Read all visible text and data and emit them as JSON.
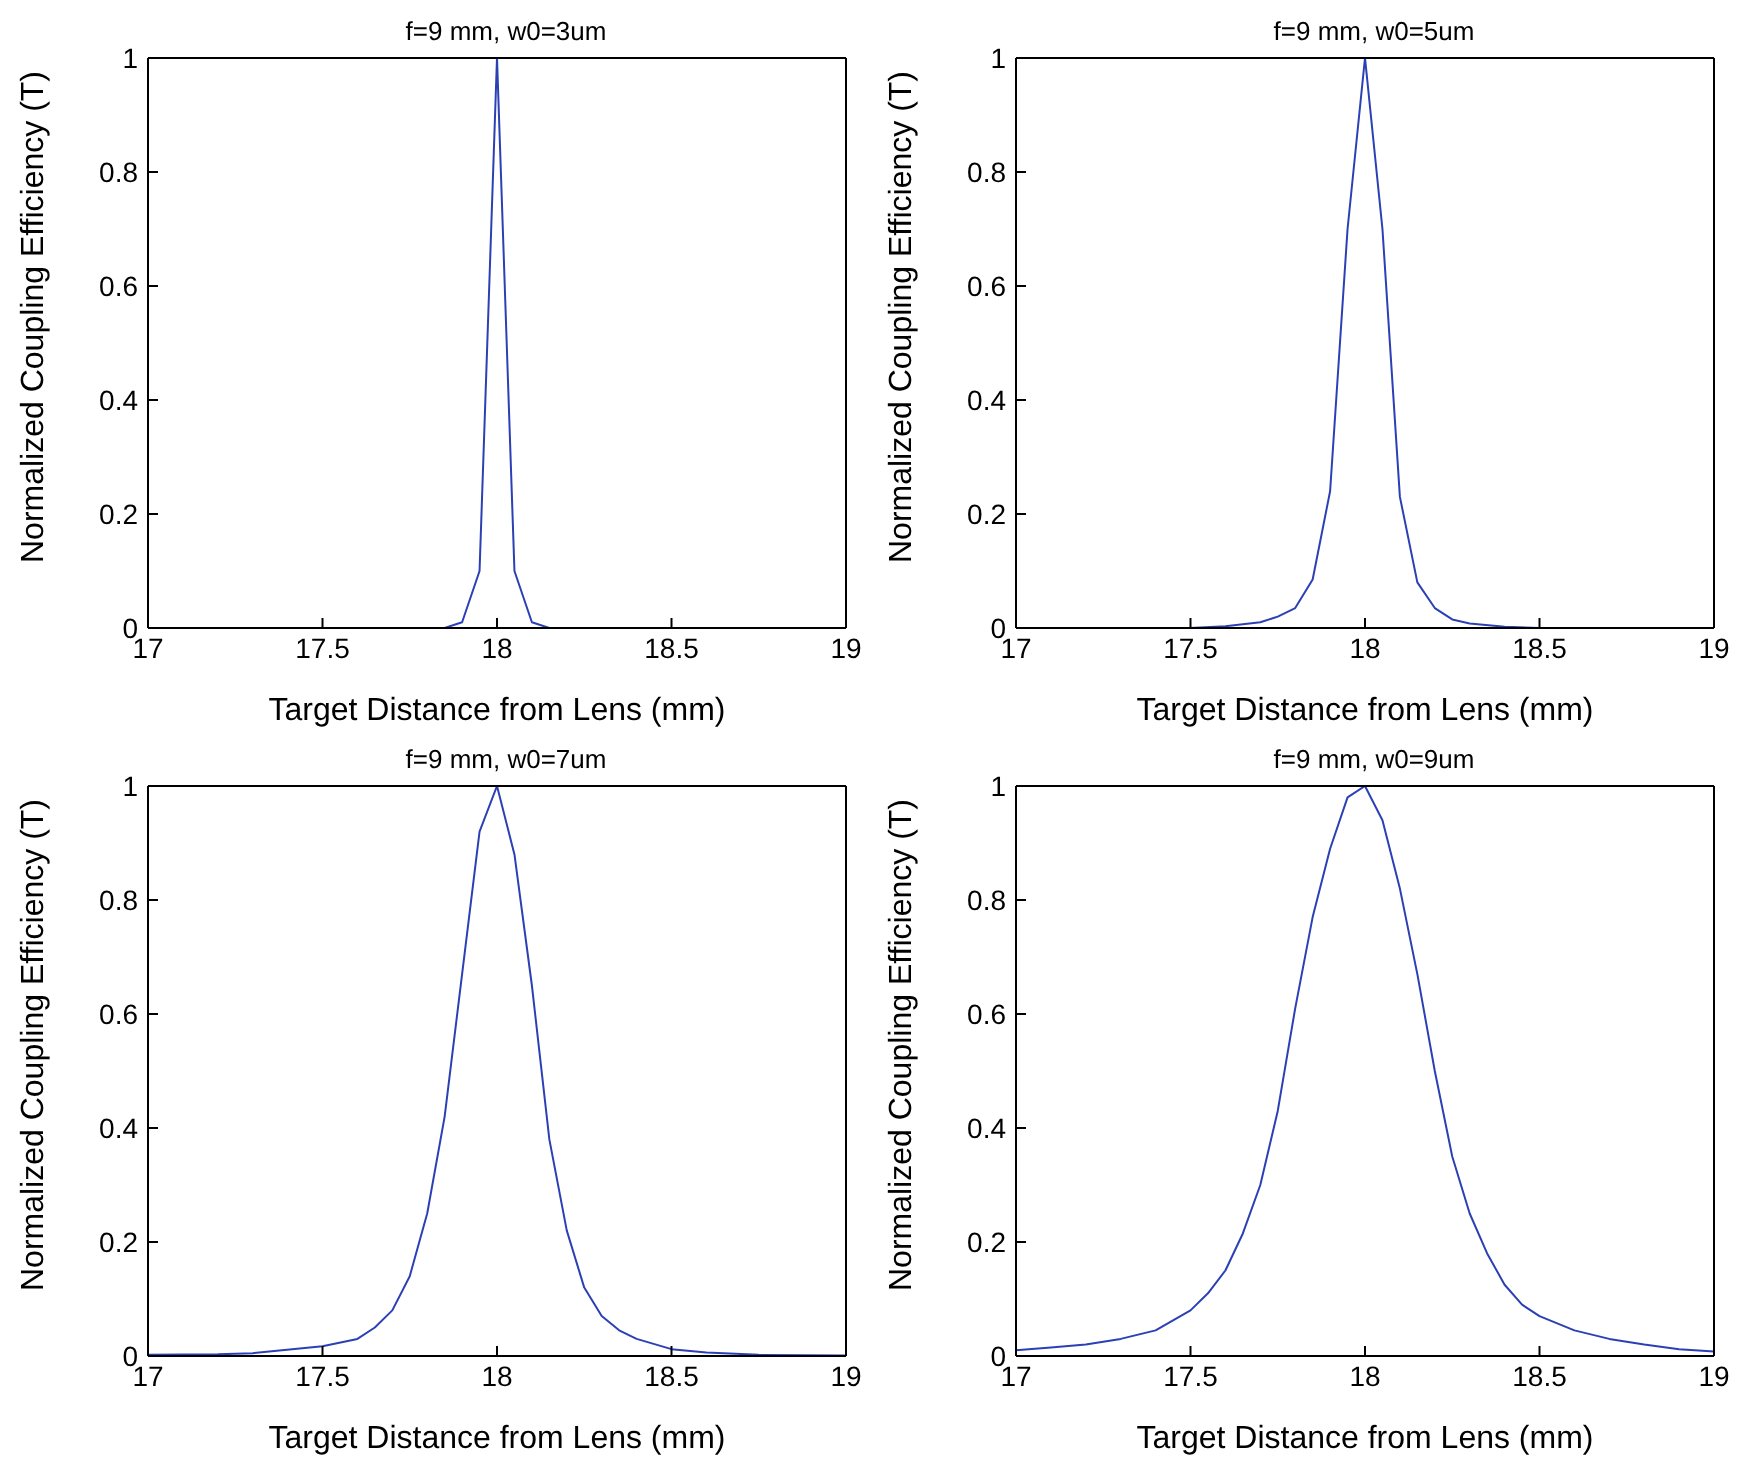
{
  "chart_data": [
    {
      "type": "line",
      "title": "f=9 mm, w0=3um",
      "xlabel": "Target Distance from Lens (mm)",
      "ylabel": "Normalized Coupling Efficiency (T)",
      "xlim": [
        17,
        19
      ],
      "xticks": [
        17,
        17.5,
        18,
        18.5,
        19
      ],
      "ylim": [
        0,
        1
      ],
      "yticks": [
        0,
        0.2,
        0.4,
        0.6,
        0.8,
        1
      ],
      "x": [
        17,
        17.85,
        17.9,
        17.95,
        18,
        18.05,
        18.1,
        18.15,
        19
      ],
      "series": [
        {
          "color": "#2b40b5",
          "values": [
            0,
            0,
            0.01,
            0.1,
            1,
            0.1,
            0.01,
            0,
            0
          ]
        }
      ]
    },
    {
      "type": "line",
      "title": "f=9 mm, w0=5um",
      "xlabel": "Target Distance from Lens (mm)",
      "ylabel": "Normalized Coupling Efficiency (T)",
      "xlim": [
        17,
        19
      ],
      "xticks": [
        17,
        17.5,
        18,
        18.5,
        19
      ],
      "ylim": [
        0,
        1
      ],
      "yticks": [
        0,
        0.2,
        0.4,
        0.6,
        0.8,
        1
      ],
      "x": [
        17,
        17.5,
        17.6,
        17.7,
        17.75,
        17.8,
        17.85,
        17.9,
        17.95,
        18,
        18.05,
        18.1,
        18.15,
        18.2,
        18.25,
        18.3,
        18.4,
        18.5,
        19
      ],
      "series": [
        {
          "color": "#2b40b5",
          "values": [
            0,
            0,
            0.003,
            0.01,
            0.02,
            0.035,
            0.085,
            0.24,
            0.7,
            1,
            0.7,
            0.23,
            0.08,
            0.035,
            0.015,
            0.008,
            0.002,
            0,
            0
          ]
        }
      ]
    },
    {
      "type": "line",
      "title": "f=9 mm, w0=7um",
      "xlabel": "Target Distance from Lens (mm)",
      "ylabel": "Normalized Coupling Efficiency (T)",
      "xlim": [
        17,
        19
      ],
      "xticks": [
        17,
        17.5,
        18,
        18.5,
        19
      ],
      "ylim": [
        0,
        1
      ],
      "yticks": [
        0,
        0.2,
        0.4,
        0.6,
        0.8,
        1
      ],
      "x": [
        17,
        17.2,
        17.3,
        17.5,
        17.6,
        17.65,
        17.7,
        17.75,
        17.8,
        17.85,
        17.9,
        17.95,
        18,
        18.05,
        18.1,
        18.15,
        18.2,
        18.25,
        18.3,
        18.35,
        18.4,
        18.5,
        18.6,
        18.75,
        19
      ],
      "series": [
        {
          "color": "#2b40b5",
          "values": [
            0.002,
            0.003,
            0.005,
            0.017,
            0.03,
            0.05,
            0.08,
            0.14,
            0.25,
            0.42,
            0.67,
            0.92,
            1,
            0.88,
            0.65,
            0.38,
            0.22,
            0.12,
            0.07,
            0.045,
            0.03,
            0.012,
            0.006,
            0.002,
            0.001
          ]
        }
      ]
    },
    {
      "type": "line",
      "title": "f=9 mm, w0=9um",
      "xlabel": "Target Distance from Lens (mm)",
      "ylabel": "Normalized Coupling Efficiency (T)",
      "xlim": [
        17,
        19
      ],
      "xticks": [
        17,
        17.5,
        18,
        18.5,
        19
      ],
      "ylim": [
        0,
        1
      ],
      "yticks": [
        0,
        0.2,
        0.4,
        0.6,
        0.8,
        1
      ],
      "x": [
        17,
        17.1,
        17.2,
        17.3,
        17.4,
        17.5,
        17.55,
        17.6,
        17.65,
        17.7,
        17.75,
        17.8,
        17.85,
        17.9,
        17.95,
        18,
        18.05,
        18.1,
        18.15,
        18.2,
        18.25,
        18.3,
        18.35,
        18.4,
        18.45,
        18.5,
        18.6,
        18.7,
        18.8,
        18.9,
        19
      ],
      "series": [
        {
          "color": "#2b40b5",
          "values": [
            0.01,
            0.015,
            0.02,
            0.03,
            0.045,
            0.08,
            0.11,
            0.15,
            0.215,
            0.3,
            0.43,
            0.61,
            0.77,
            0.89,
            0.98,
            1,
            0.94,
            0.82,
            0.67,
            0.5,
            0.35,
            0.25,
            0.18,
            0.125,
            0.09,
            0.07,
            0.045,
            0.03,
            0.02,
            0.012,
            0.008
          ]
        }
      ]
    }
  ]
}
